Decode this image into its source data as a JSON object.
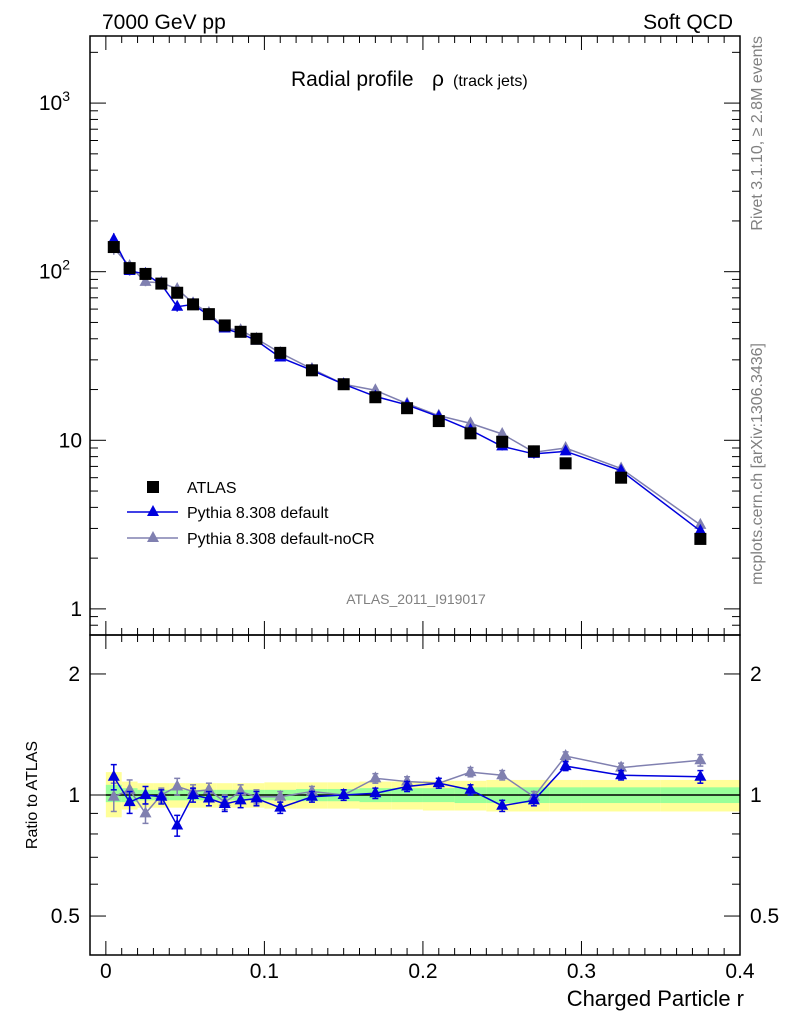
{
  "header": {
    "left": "7000 GeV pp",
    "right": "Soft QCD"
  },
  "side": {
    "rivet": "Rivet 3.1.10, ≥ 2.8M events",
    "mcplots": "mcplots.cern.ch [arXiv:1306.3436]"
  },
  "title": {
    "main": "Radial profile",
    "symbol": "ρ",
    "sub": "(track jets)"
  },
  "analysis_tag": "ATLAS_2011_I919017",
  "ratio_ylabel": "Ratio to ATLAS",
  "xlabel": "Charged Particle r",
  "legend": [
    {
      "label": "ATLAS",
      "marker": "square",
      "color": "#000000"
    },
    {
      "label": "Pythia 8.308 default",
      "marker": "triangle",
      "color": "#0000dd"
    },
    {
      "label": "Pythia 8.308 default-noCR",
      "marker": "triangle",
      "color": "#8080b0"
    }
  ],
  "colors": {
    "band_yellow": "#ffff99",
    "band_green": "#99ff99",
    "default": "#0000dd",
    "noCR": "#8080b0",
    "data": "#000000"
  },
  "chart_data": [
    {
      "type": "scatter",
      "panel": "main",
      "yscale": "log",
      "xlim": [
        -0.01,
        0.4
      ],
      "ylim": [
        0.7,
        2500
      ],
      "x": [
        0.005,
        0.015,
        0.025,
        0.035,
        0.045,
        0.055,
        0.065,
        0.075,
        0.085,
        0.095,
        0.11,
        0.13,
        0.15,
        0.17,
        0.19,
        0.21,
        0.23,
        0.25,
        0.27,
        0.29,
        0.325,
        0.375
      ],
      "yticks": [
        {
          "v": 1,
          "label": "1"
        },
        {
          "v": 10,
          "label": "10"
        },
        {
          "v": 100,
          "label": "10",
          "exp": "2"
        },
        {
          "v": 1000,
          "label": "10",
          "exp": "3"
        }
      ],
      "series": [
        {
          "name": "ATLAS",
          "values": [
            140,
            105,
            97,
            85,
            75,
            64,
            56,
            48,
            44,
            40,
            33,
            26,
            21.5,
            18,
            15.5,
            13,
            11,
            9.8,
            8.6,
            7.3,
            6.0,
            2.6
          ],
          "err": [
            10,
            6,
            5,
            4,
            4,
            3,
            3,
            2,
            2,
            2,
            1.5,
            1.2,
            1,
            0.9,
            0.8,
            0.7,
            0.6,
            0.5,
            0.5,
            0.4,
            0.3,
            0.15
          ]
        },
        {
          "name": "Pythia 8.308 default",
          "values": [
            155,
            101,
            97,
            84,
            62,
            64,
            55,
            46,
            43,
            39,
            31,
            26,
            21.5,
            18.2,
            16.2,
            13.8,
            11.5,
            9.2,
            8.3,
            8.6,
            6.6,
            2.9
          ],
          "err": [
            14,
            6,
            5,
            4,
            4,
            3,
            3,
            2,
            2,
            2,
            1.5,
            1.2,
            1,
            0.9,
            0.8,
            0.7,
            0.6,
            0.5,
            0.5,
            0.4,
            0.3,
            0.15
          ]
        },
        {
          "name": "Pythia 8.308 default-noCR",
          "values": [
            138,
            108,
            87,
            86,
            79,
            65,
            57,
            46,
            45,
            40,
            33,
            26.5,
            21.5,
            19.8,
            16.5,
            14,
            12.6,
            10.9,
            8.5,
            9.0,
            6.8,
            3.15
          ],
          "err": [
            12,
            6,
            5,
            4,
            4,
            3,
            3,
            2,
            2,
            2,
            1.5,
            1.2,
            1,
            0.9,
            0.8,
            0.7,
            0.6,
            0.5,
            0.5,
            0.4,
            0.3,
            0.15
          ]
        }
      ]
    },
    {
      "type": "scatter",
      "panel": "ratio",
      "xlabel": "Charged Particle r",
      "ylabel": "Ratio to ATLAS",
      "yscale": "log",
      "xlim": [
        -0.01,
        0.4
      ],
      "ylim": [
        0.4,
        2.5
      ],
      "xticks": [
        {
          "v": 0,
          "label": "0"
        },
        {
          "v": 0.1,
          "label": "0.1"
        },
        {
          "v": 0.2,
          "label": "0.2"
        },
        {
          "v": 0.3,
          "label": "0.3"
        },
        {
          "v": 0.4,
          "label": "0.4"
        }
      ],
      "yticks": [
        {
          "v": 0.5,
          "label": "0.5"
        },
        {
          "v": 1,
          "label": "1"
        },
        {
          "v": 2,
          "label": "2"
        }
      ],
      "x": [
        0.005,
        0.015,
        0.025,
        0.035,
        0.045,
        0.055,
        0.065,
        0.075,
        0.085,
        0.095,
        0.11,
        0.13,
        0.15,
        0.17,
        0.19,
        0.21,
        0.23,
        0.25,
        0.27,
        0.29,
        0.325,
        0.375
      ],
      "bin_edges": [
        0,
        0.01,
        0.02,
        0.03,
        0.04,
        0.05,
        0.06,
        0.07,
        0.08,
        0.09,
        0.1,
        0.12,
        0.14,
        0.16,
        0.18,
        0.2,
        0.22,
        0.24,
        0.26,
        0.28,
        0.3,
        0.35,
        0.4
      ],
      "band_yellow": [
        [
          0.88,
          1.14
        ],
        [
          0.92,
          1.08
        ],
        [
          0.93,
          1.07
        ],
        [
          0.93,
          1.07
        ],
        [
          0.93,
          1.07
        ],
        [
          0.93,
          1.07
        ],
        [
          0.93,
          1.07
        ],
        [
          0.93,
          1.07
        ],
        [
          0.93,
          1.07
        ],
        [
          0.93,
          1.07
        ],
        [
          0.925,
          1.075
        ],
        [
          0.925,
          1.075
        ],
        [
          0.925,
          1.075
        ],
        [
          0.92,
          1.08
        ],
        [
          0.92,
          1.08
        ],
        [
          0.915,
          1.085
        ],
        [
          0.915,
          1.085
        ],
        [
          0.91,
          1.09
        ],
        [
          0.91,
          1.09
        ],
        [
          0.91,
          1.09
        ],
        [
          0.91,
          1.09
        ],
        [
          0.91,
          1.09
        ]
      ],
      "band_green": [
        [
          0.96,
          1.06
        ],
        [
          0.96,
          1.04
        ],
        [
          0.97,
          1.03
        ],
        [
          0.97,
          1.03
        ],
        [
          0.97,
          1.03
        ],
        [
          0.97,
          1.03
        ],
        [
          0.97,
          1.03
        ],
        [
          0.97,
          1.03
        ],
        [
          0.97,
          1.03
        ],
        [
          0.97,
          1.03
        ],
        [
          0.97,
          1.03
        ],
        [
          0.965,
          1.035
        ],
        [
          0.965,
          1.035
        ],
        [
          0.96,
          1.04
        ],
        [
          0.96,
          1.04
        ],
        [
          0.96,
          1.04
        ],
        [
          0.955,
          1.045
        ],
        [
          0.955,
          1.045
        ],
        [
          0.955,
          1.045
        ],
        [
          0.955,
          1.045
        ],
        [
          0.955,
          1.045
        ],
        [
          0.955,
          1.045
        ]
      ],
      "series": [
        {
          "name": "Pythia 8.308 default",
          "values": [
            1.11,
            0.96,
            1.0,
            0.99,
            0.84,
            1.0,
            0.98,
            0.95,
            0.97,
            0.98,
            0.93,
            0.99,
            1.0,
            1.01,
            1.05,
            1.07,
            1.03,
            0.94,
            0.97,
            1.18,
            1.12,
            1.11
          ],
          "err": [
            0.08,
            0.06,
            0.05,
            0.04,
            0.05,
            0.04,
            0.04,
            0.04,
            0.04,
            0.04,
            0.03,
            0.03,
            0.03,
            0.03,
            0.03,
            0.03,
            0.03,
            0.03,
            0.03,
            0.03,
            0.03,
            0.04
          ]
        },
        {
          "name": "Pythia 8.308 default-noCR",
          "values": [
            0.99,
            1.03,
            0.9,
            1.0,
            1.05,
            1.02,
            1.03,
            0.96,
            1.02,
            0.99,
            0.99,
            1.02,
            1.0,
            1.1,
            1.08,
            1.07,
            1.14,
            1.12,
            0.99,
            1.25,
            1.17,
            1.22
          ],
          "err": [
            0.08,
            0.06,
            0.05,
            0.04,
            0.05,
            0.04,
            0.04,
            0.04,
            0.04,
            0.04,
            0.03,
            0.03,
            0.03,
            0.03,
            0.03,
            0.03,
            0.03,
            0.03,
            0.03,
            0.03,
            0.03,
            0.04
          ]
        }
      ]
    }
  ]
}
